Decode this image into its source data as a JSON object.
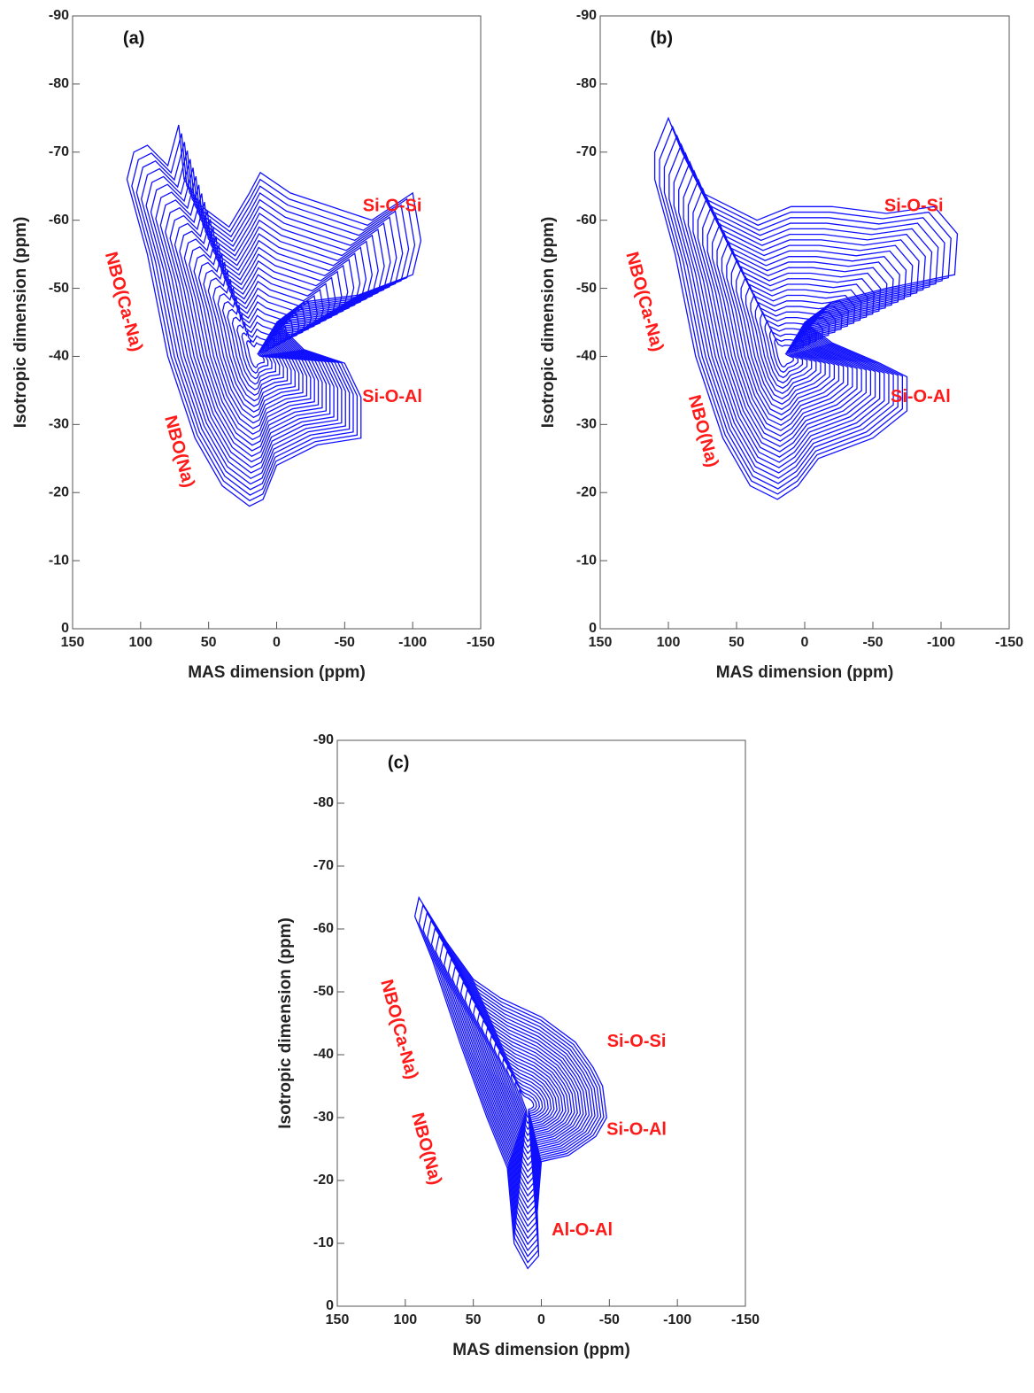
{
  "chart_data": [
    {
      "type": "contour",
      "panel_label": "(a)",
      "xlabel": "MAS dimension (ppm)",
      "ylabel": "Isotropic dimension (ppm)",
      "xlim": [
        150,
        -150
      ],
      "ylim": [
        0,
        -90
      ],
      "xticks": [
        150,
        100,
        50,
        0,
        -50,
        -100,
        -150
      ],
      "yticks": [
        0,
        -10,
        -20,
        -30,
        -40,
        -50,
        -60,
        -70,
        -80,
        -90
      ],
      "color": "#1010ff",
      "annotations": [
        "Si-O-Si",
        "Si-O-Al",
        "NBO(Ca-Na)",
        "NBO(Na)"
      ]
    },
    {
      "type": "contour",
      "panel_label": "(b)",
      "xlabel": "MAS dimension (ppm)",
      "ylabel": "Isotropic dimension (ppm)",
      "xlim": [
        150,
        -150
      ],
      "ylim": [
        0,
        -90
      ],
      "xticks": [
        150,
        100,
        50,
        0,
        -50,
        -100,
        -150
      ],
      "yticks": [
        0,
        -10,
        -20,
        -30,
        -40,
        -50,
        -60,
        -70,
        -80,
        -90
      ],
      "color": "#1010ff",
      "annotations": [
        "Si-O-Si",
        "Si-O-Al",
        "NBO(Ca-Na)",
        "NBO(Na)"
      ]
    },
    {
      "type": "contour",
      "panel_label": "(c)",
      "xlabel": "MAS dimension (ppm)",
      "ylabel": "Isotropic dimension (ppm)",
      "xlim": [
        150,
        -150
      ],
      "ylim": [
        0,
        -90
      ],
      "xticks": [
        150,
        100,
        50,
        0,
        -50,
        -100,
        -150
      ],
      "yticks": [
        0,
        -10,
        -20,
        -30,
        -40,
        -50,
        -60,
        -70,
        -80,
        -90
      ],
      "color": "#1010ff",
      "annotations": [
        "Si-O-Si",
        "Si-O-Al",
        "NBO(Ca-Na)",
        "NBO(Na)",
        "Al-O-Al"
      ]
    }
  ]
}
